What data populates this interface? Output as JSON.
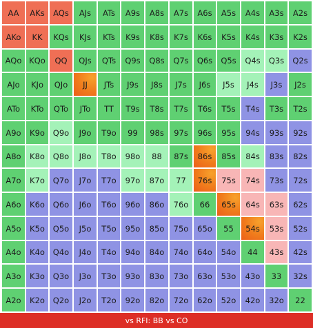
{
  "rows": [
    [
      "AA",
      "AKs",
      "AQs",
      "AJs",
      "ATs",
      "A9s",
      "A8s",
      "A7s",
      "A6s",
      "A5s",
      "A4s",
      "A3s",
      "A2s"
    ],
    [
      "AKo",
      "KK",
      "KQs",
      "KJs",
      "KTs",
      "K9s",
      "K8s",
      "K7s",
      "K6s",
      "K5s",
      "K4s",
      "K3s",
      "K2s"
    ],
    [
      "AQo",
      "KQo",
      "QQ",
      "QJs",
      "QTs",
      "Q9s",
      "Q8s",
      "Q7s",
      "Q6s",
      "Q5s",
      "Q4s",
      "Q3s",
      "Q2s"
    ],
    [
      "AJo",
      "KJo",
      "QJo",
      "JJ",
      "JTs",
      "J9s",
      "J8s",
      "J7s",
      "J6s",
      "J5s",
      "J4s",
      "J3s",
      "J2s"
    ],
    [
      "ATo",
      "KTo",
      "QTo",
      "JTo",
      "TT",
      "T9s",
      "T8s",
      "T7s",
      "T6s",
      "T5s",
      "T4s",
      "T3s",
      "T2s"
    ],
    [
      "A9o",
      "K9o",
      "Q9o",
      "J9o",
      "T9o",
      "99",
      "98s",
      "97s",
      "96s",
      "95s",
      "94s",
      "93s",
      "92s"
    ],
    [
      "A8o",
      "K8o",
      "Q8o",
      "J8o",
      "T8o",
      "98o",
      "88",
      "87s",
      "86s",
      "85s",
      "84s",
      "83s",
      "82s"
    ],
    [
      "A7o",
      "K7o",
      "Q7o",
      "J7o",
      "T7o",
      "97o",
      "87o",
      "77",
      "76s",
      "75s",
      "74s",
      "73s",
      "72s"
    ],
    [
      "A6o",
      "K6o",
      "Q6o",
      "J6o",
      "T6o",
      "96o",
      "86o",
      "76o",
      "66",
      "65s",
      "64s",
      "63s",
      "62s"
    ],
    [
      "A5o",
      "K5o",
      "Q5o",
      "J5o",
      "T5o",
      "95o",
      "85o",
      "75o",
      "65o",
      "55",
      "54s",
      "53s",
      "52s"
    ],
    [
      "A4o",
      "K4o",
      "Q4o",
      "J4o",
      "T4o",
      "94o",
      "84o",
      "74o",
      "64o",
      "54o",
      "44",
      "43s",
      "42s"
    ],
    [
      "A3o",
      "K3o",
      "Q3o",
      "J3o",
      "T3o",
      "93o",
      "83o",
      "73o",
      "63o",
      "53o",
      "43o",
      "33",
      "32s"
    ],
    [
      "A2o",
      "K2o",
      "Q2o",
      "J2o",
      "T2o",
      "92o",
      "82o",
      "72o",
      "62o",
      "52o",
      "42o",
      "32o",
      "22"
    ]
  ],
  "colors": {
    "R": "#ef6f55",
    "O": "#f07b1c",
    "G": "#5fd072",
    "L": "#a4f2b8",
    "B": "#8f93e4",
    "P": "#f8b6b6"
  },
  "color_map": [
    "RRRGGGGGGGGGG",
    "RRGGGGGGGGGGG",
    "GGRGGGGGGGLLB",
    "GGGOGGGGGLLBG",
    "GGGGGGGGGGBGG",
    "GGLGGGGGGGBBB",
    "GLLLLLLGOGLBB",
    "GLBBBLLLOPPBB",
    "GBBBBBBLGOPPB",
    "GBBBBBBBBGOPB",
    "GBBBBBBBBBGPB",
    "GBBBBBBBBBBGB",
    "GBBBBBBBBBBBG"
  ],
  "footer": "vs RFI: BB vs CO"
}
